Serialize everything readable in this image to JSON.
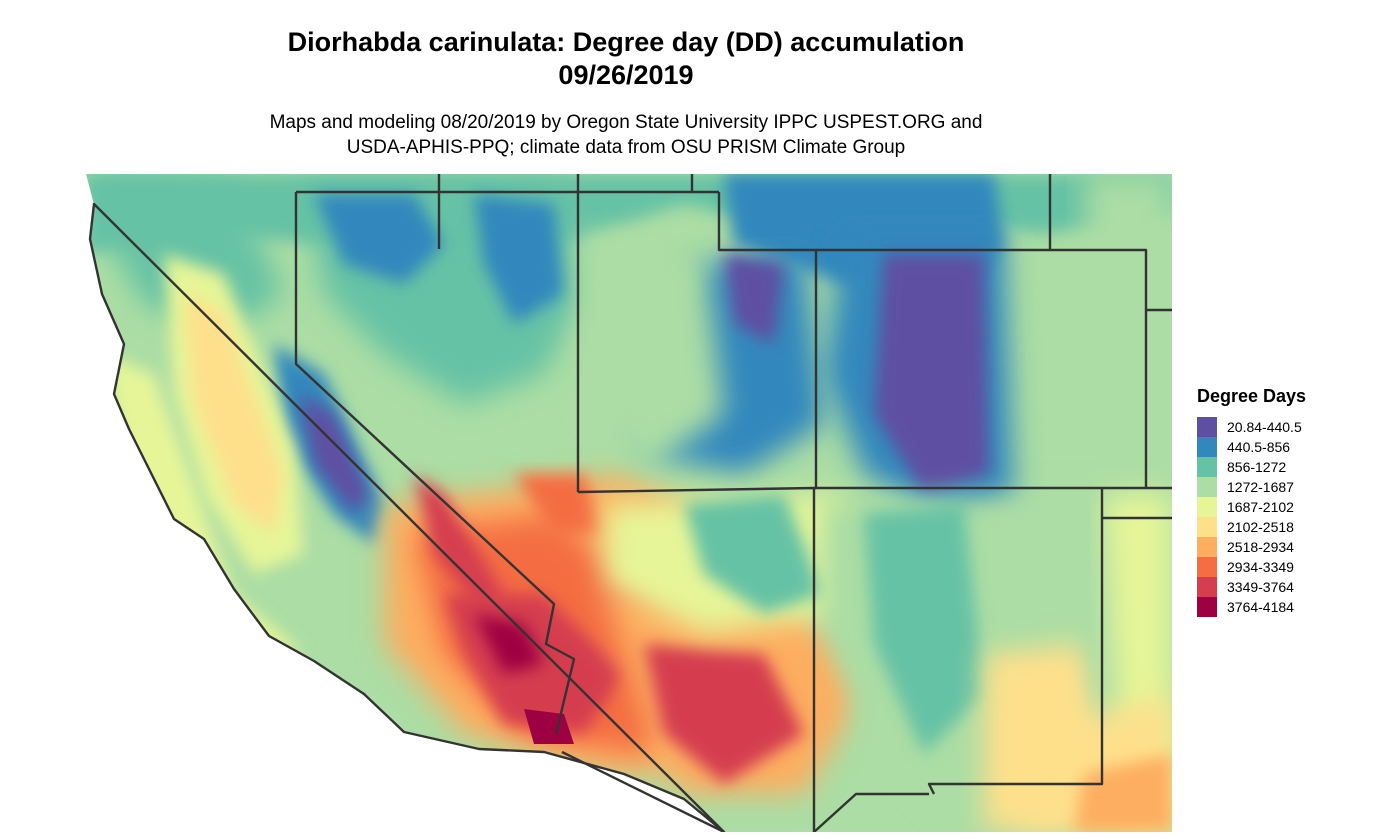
{
  "title": {
    "line1": "Diorhabda carinulata: Degree day (DD) accumulation",
    "line2": "09/26/2019"
  },
  "subtitle": {
    "line1": "Maps and modeling 08/20/2019 by Oregon State University IPPC USPEST.ORG and",
    "line2": "USDA-APHIS-PPQ; climate data from OSU PRISM Climate Group"
  },
  "legend": {
    "title": "Degree Days",
    "items": [
      {
        "label": "20.84-440.5",
        "color": "#5e4fa2"
      },
      {
        "label": "440.5-856",
        "color": "#3288bd"
      },
      {
        "label": "856-1272",
        "color": "#66c2a5"
      },
      {
        "label": "1272-1687",
        "color": "#abdda4"
      },
      {
        "label": "1687-2102",
        "color": "#e6f598"
      },
      {
        "label": "2102-2518",
        "color": "#fee08b"
      },
      {
        "label": "2518-2934",
        "color": "#fdae61"
      },
      {
        "label": "2934-3349",
        "color": "#f46d43"
      },
      {
        "label": "3349-3764",
        "color": "#d53e4f"
      },
      {
        "label": "3764-4184",
        "color": "#9e0142"
      }
    ]
  },
  "map": {
    "background": "#ffffff",
    "border_color": "#333333"
  }
}
